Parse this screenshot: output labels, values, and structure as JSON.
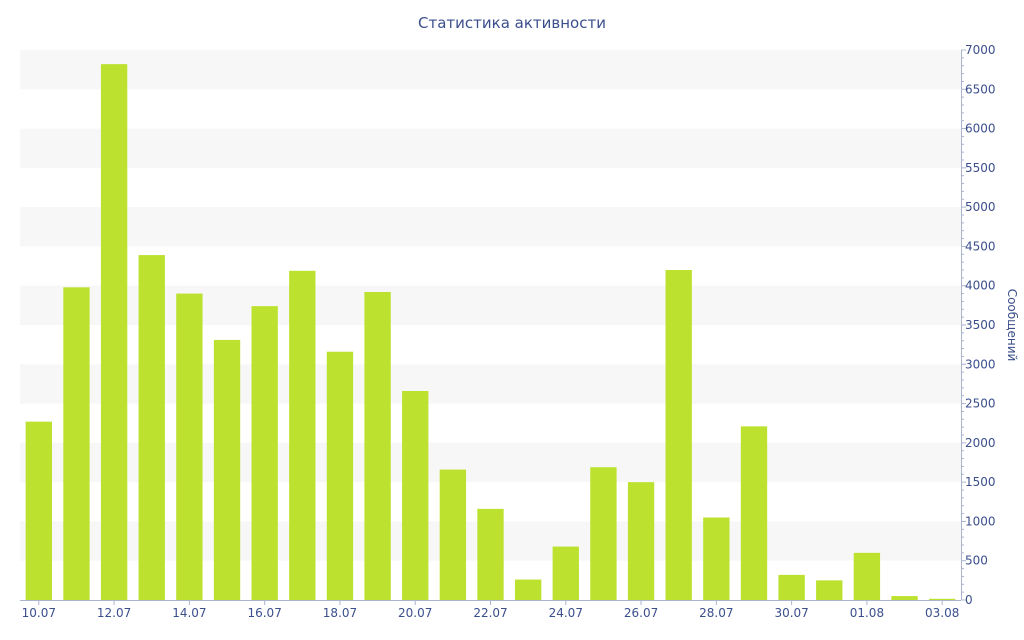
{
  "chart_data": {
    "type": "bar",
    "title": "Статистика активности",
    "xlabel": "",
    "ylabel": "Сообщений",
    "y_axis_side": "right",
    "ylim": [
      0,
      7000
    ],
    "y_ticks": [
      0,
      500,
      1000,
      1500,
      2000,
      2500,
      3000,
      3500,
      4000,
      4500,
      5000,
      5500,
      6000,
      6500,
      7000
    ],
    "grid": "alternating horizontal bands",
    "legend": "none",
    "bar_color": "#bce22f",
    "band_color": "#f7f7f7",
    "text_color": "#3b4f8c",
    "categories": [
      "10.07",
      "11.07",
      "12.07",
      "13.07",
      "14.07",
      "15.07",
      "16.07",
      "17.07",
      "18.07",
      "19.07",
      "20.07",
      "21.07",
      "22.07",
      "23.07",
      "24.07",
      "25.07",
      "26.07",
      "27.07",
      "28.07",
      "29.07",
      "30.07",
      "31.07",
      "01.08",
      "02.08",
      "03.08"
    ],
    "x_tick_labels": [
      "10.07",
      "12.07",
      "14.07",
      "16.07",
      "18.07",
      "20.07",
      "22.07",
      "24.07",
      "26.07",
      "28.07",
      "30.07",
      "01.08",
      "03.08"
    ],
    "values": [
      2270,
      3980,
      6820,
      4390,
      3900,
      3310,
      3740,
      4190,
      3160,
      3920,
      2660,
      1660,
      1160,
      260,
      680,
      1690,
      1500,
      4200,
      1050,
      2210,
      320,
      250,
      600,
      50,
      15
    ]
  }
}
